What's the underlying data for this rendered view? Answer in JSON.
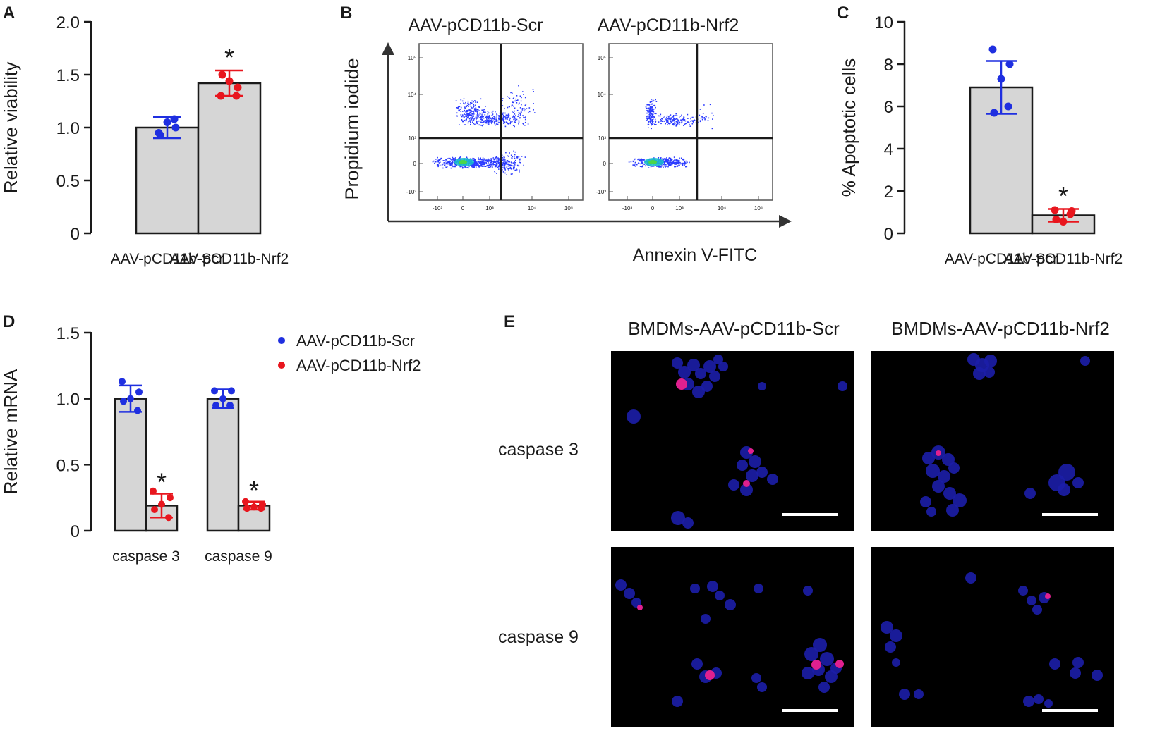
{
  "panels": {
    "a": "A",
    "b": "B",
    "c": "C",
    "d": "D",
    "e": "E"
  },
  "colors": {
    "scr": "#1f2fe0",
    "nrf2": "#e8161e",
    "bar": "#d6d6d6",
    "axis": "#1a1a1a",
    "micro_bg": "#000000",
    "nucleus": "#1c1ea8",
    "positive": "#e0208f",
    "flow_dot": "#2b3bff"
  },
  "chart_data": [
    {
      "id": "A",
      "type": "bar",
      "title": "",
      "ylabel": "Relative viability",
      "xlabel": "",
      "ylim": [
        0,
        2.0
      ],
      "yticks": [
        0,
        0.5,
        1.0,
        1.5,
        2.0
      ],
      "ytick_labels": [
        "0",
        "0.5",
        "1.0",
        "1.5",
        "2.0"
      ],
      "categories": [
        "AAV-pCD11b-Scr",
        "AAV-pCD11b-Nrf2"
      ],
      "values": [
        1.0,
        1.42
      ],
      "errors": [
        0.1,
        0.12
      ],
      "points": [
        [
          0.95,
          1.0,
          1.05,
          0.93,
          1.08
        ],
        [
          1.3,
          1.38,
          1.44,
          1.5,
          1.3
        ]
      ],
      "point_colors": [
        "#1f2fe0",
        "#e8161e"
      ],
      "significance": [
        "",
        "*"
      ]
    },
    {
      "id": "B",
      "type": "scatter",
      "title": "",
      "xlabel": "Annexin V-FITC",
      "ylabel": "Propidium iodide",
      "plots": [
        "AAV-pCD11b-Scr",
        "AAV-pCD11b-Nrf2"
      ],
      "xtick_labels": [
        "-10³",
        "0",
        "10³",
        "10⁴",
        "10⁵"
      ],
      "ytick_labels": [
        "10⁵",
        "10⁴",
        "10³",
        "0",
        "-10³"
      ]
    },
    {
      "id": "C",
      "type": "bar",
      "title": "",
      "ylabel": "% Apoptotic cells",
      "xlabel": "",
      "ylim": [
        0,
        10
      ],
      "yticks": [
        0,
        2,
        4,
        6,
        8,
        10
      ],
      "ytick_labels": [
        "0",
        "2",
        "4",
        "6",
        "8",
        "10"
      ],
      "categories": [
        "AAV-pCD11b-Scr",
        "AAV-pCD11b-Nrf2"
      ],
      "values": [
        6.9,
        0.85
      ],
      "errors": [
        1.25,
        0.3
      ],
      "points": [
        [
          8.7,
          8.0,
          7.3,
          5.7,
          6.0
        ],
        [
          1.1,
          1.05,
          0.55,
          0.65,
          0.9
        ]
      ],
      "point_colors": [
        "#1f2fe0",
        "#e8161e"
      ],
      "significance": [
        "",
        "*"
      ]
    },
    {
      "id": "D",
      "type": "bar",
      "title": "",
      "ylabel": "Relative mRNA",
      "xlabel": "",
      "ylim": [
        0,
        1.5
      ],
      "yticks": [
        0,
        0.5,
        1.0,
        1.5
      ],
      "ytick_labels": [
        "0",
        "0.5",
        "1.0",
        "1.5"
      ],
      "categories": [
        "caspase 3",
        "caspase 9"
      ],
      "series": [
        {
          "name": "AAV-pCD11b-Scr",
          "values": [
            1.0,
            1.0
          ],
          "errors": [
            0.1,
            0.07
          ],
          "points": [
            [
              1.13,
              1.05,
              1.0,
              0.98,
              0.91
            ],
            [
              1.06,
              1.06,
              1.0,
              0.95,
              0.95
            ]
          ],
          "color": "#1f2fe0"
        },
        {
          "name": "AAV-pCD11b-Nrf2",
          "values": [
            0.19,
            0.19
          ],
          "errors": [
            0.09,
            0.03
          ],
          "points": [
            [
              0.3,
              0.25,
              0.2,
              0.16,
              0.1
            ],
            [
              0.22,
              0.2,
              0.18,
              0.17,
              0.17
            ]
          ],
          "color": "#e8161e"
        }
      ],
      "significance": [
        "*",
        "*"
      ],
      "legend": "top-right"
    }
  ],
  "panel_b_titles": [
    "AAV-pCD11b-Scr",
    "AAV-pCD11b-Nrf2"
  ],
  "panel_e": {
    "columns": [
      "BMDMs-AAV-pCD11b-Scr",
      "BMDMs-AAV-pCD11b-Nrf2"
    ],
    "rows": [
      "caspase 3",
      "caspase 9"
    ]
  }
}
